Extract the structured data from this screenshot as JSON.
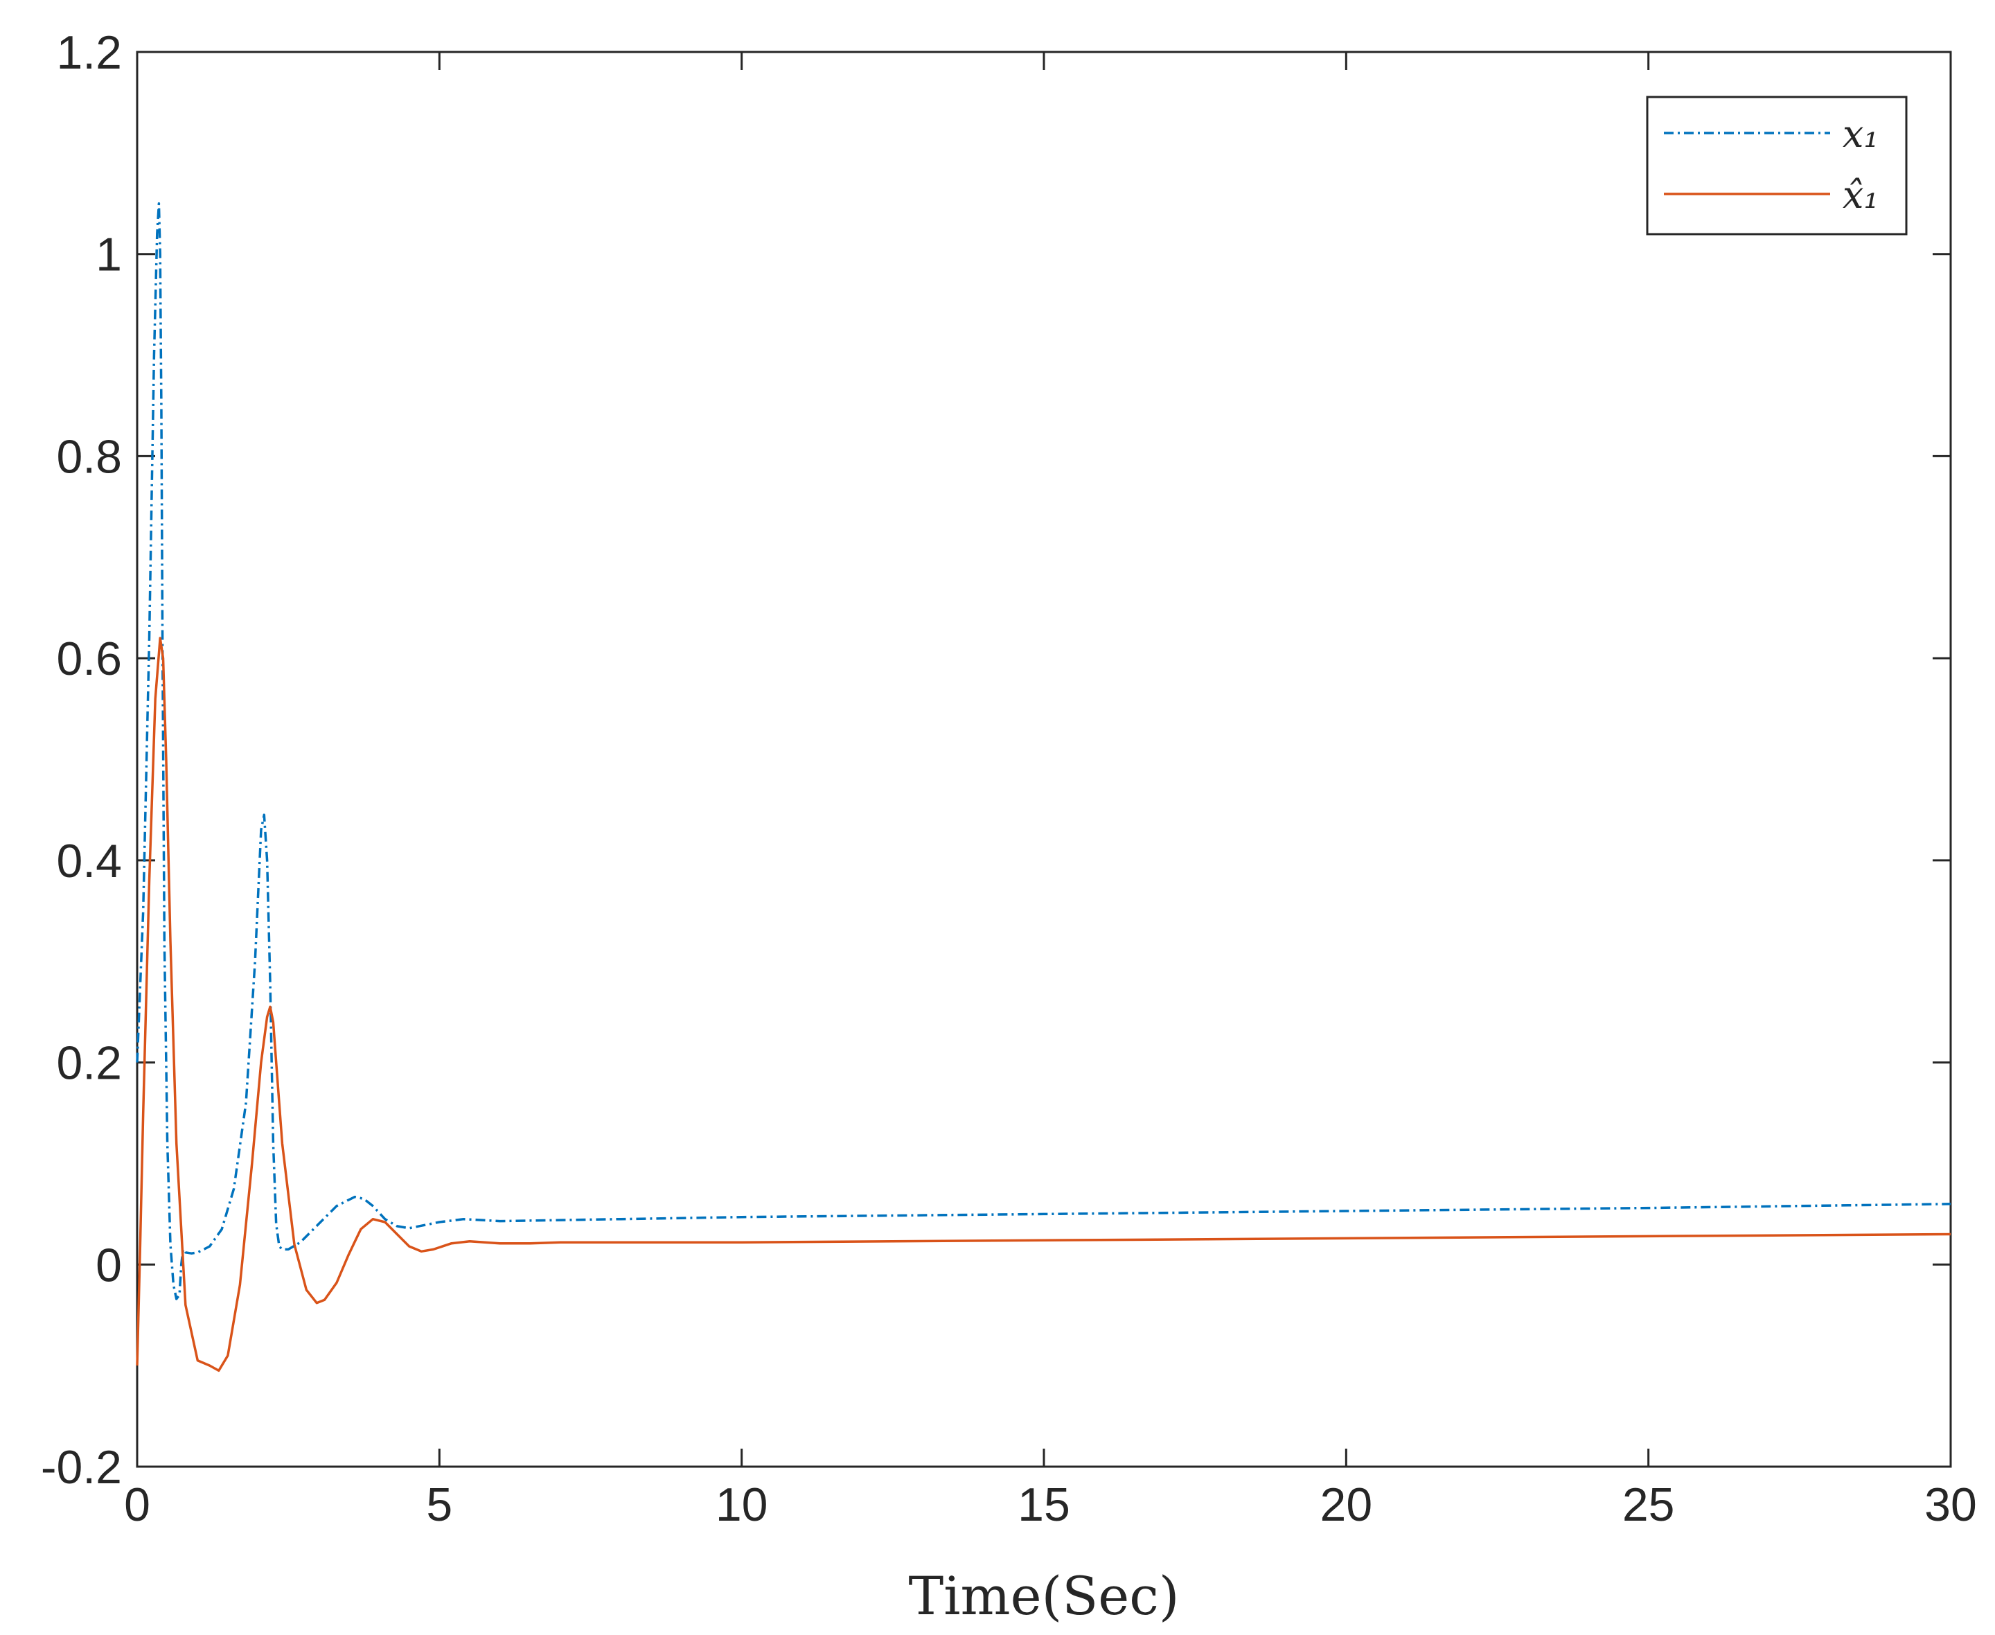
{
  "chart_data": {
    "type": "line",
    "title": "",
    "xlabel": "Time(Sec)",
    "ylabel": "",
    "xlim": [
      0,
      30
    ],
    "ylim": [
      -0.2,
      1.2
    ],
    "xticks": [
      0,
      5,
      10,
      15,
      20,
      25,
      30
    ],
    "xtick_labels": [
      "0",
      "5",
      "10",
      "15",
      "20",
      "25",
      "30"
    ],
    "yticks": [
      -0.2,
      0,
      0.2,
      0.4,
      0.6,
      0.8,
      1,
      1.2
    ],
    "ytick_labels": [
      "-0.2",
      "0",
      "0.2",
      "0.4",
      "0.6",
      "0.8",
      "1",
      "1.2"
    ],
    "grid": false,
    "legend_position": "top-right",
    "series": [
      {
        "name": "x₁",
        "color": "#0072BD",
        "style": "dash-dot",
        "x": [
          0,
          0.1,
          0.2,
          0.28,
          0.33,
          0.36,
          0.38,
          0.4,
          0.42,
          0.45,
          0.5,
          0.55,
          0.6,
          0.65,
          0.7,
          0.73,
          0.76,
          0.8,
          0.9,
          1.0,
          1.2,
          1.4,
          1.6,
          1.8,
          1.95,
          2.05,
          2.1,
          2.15,
          2.2,
          2.25,
          2.3,
          2.35,
          2.4,
          2.5,
          2.7,
          3.0,
          3.3,
          3.6,
          3.75,
          3.9,
          4.1,
          4.3,
          4.5,
          5.0,
          5.4,
          6.0,
          7.0,
          8.0,
          10.0,
          15.0,
          20.0,
          25.0,
          30.0
        ],
        "y": [
          0.2,
          0.35,
          0.62,
          0.9,
          1.02,
          1.05,
          1.0,
          0.85,
          0.6,
          0.32,
          0.12,
          0.02,
          -0.02,
          -0.034,
          -0.03,
          0.0,
          0.015,
          0.012,
          0.011,
          0.012,
          0.018,
          0.035,
          0.075,
          0.16,
          0.3,
          0.43,
          0.445,
          0.4,
          0.28,
          0.12,
          0.04,
          0.018,
          0.015,
          0.015,
          0.022,
          0.04,
          0.058,
          0.067,
          0.065,
          0.058,
          0.045,
          0.038,
          0.036,
          0.042,
          0.045,
          0.043,
          0.044,
          0.045,
          0.047,
          0.05,
          0.053,
          0.056,
          0.06
        ]
      },
      {
        "name": "x̂₁",
        "color": "#D95319",
        "style": "solid",
        "x": [
          0,
          0.05,
          0.1,
          0.2,
          0.3,
          0.38,
          0.43,
          0.48,
          0.55,
          0.65,
          0.8,
          1.0,
          1.2,
          1.35,
          1.5,
          1.7,
          1.9,
          2.05,
          2.15,
          2.2,
          2.25,
          2.3,
          2.4,
          2.6,
          2.8,
          2.97,
          3.1,
          3.3,
          3.5,
          3.7,
          3.9,
          4.1,
          4.3,
          4.5,
          4.7,
          4.9,
          5.2,
          5.5,
          6.0,
          6.5,
          7.0,
          8.0,
          10.0,
          15.0,
          20.0,
          25.0,
          30.0
        ],
        "y": [
          -0.1,
          0.02,
          0.15,
          0.38,
          0.56,
          0.62,
          0.6,
          0.5,
          0.32,
          0.12,
          -0.04,
          -0.095,
          -0.1,
          -0.105,
          -0.09,
          -0.02,
          0.1,
          0.2,
          0.245,
          0.255,
          0.24,
          0.2,
          0.12,
          0.02,
          -0.025,
          -0.038,
          -0.035,
          -0.018,
          0.01,
          0.035,
          0.045,
          0.042,
          0.03,
          0.018,
          0.013,
          0.015,
          0.021,
          0.023,
          0.021,
          0.021,
          0.022,
          0.022,
          0.022,
          0.024,
          0.026,
          0.028,
          0.03
        ]
      }
    ]
  },
  "legend": {
    "entries": [
      {
        "label": "x₁"
      },
      {
        "label": "x̂₁"
      }
    ]
  }
}
